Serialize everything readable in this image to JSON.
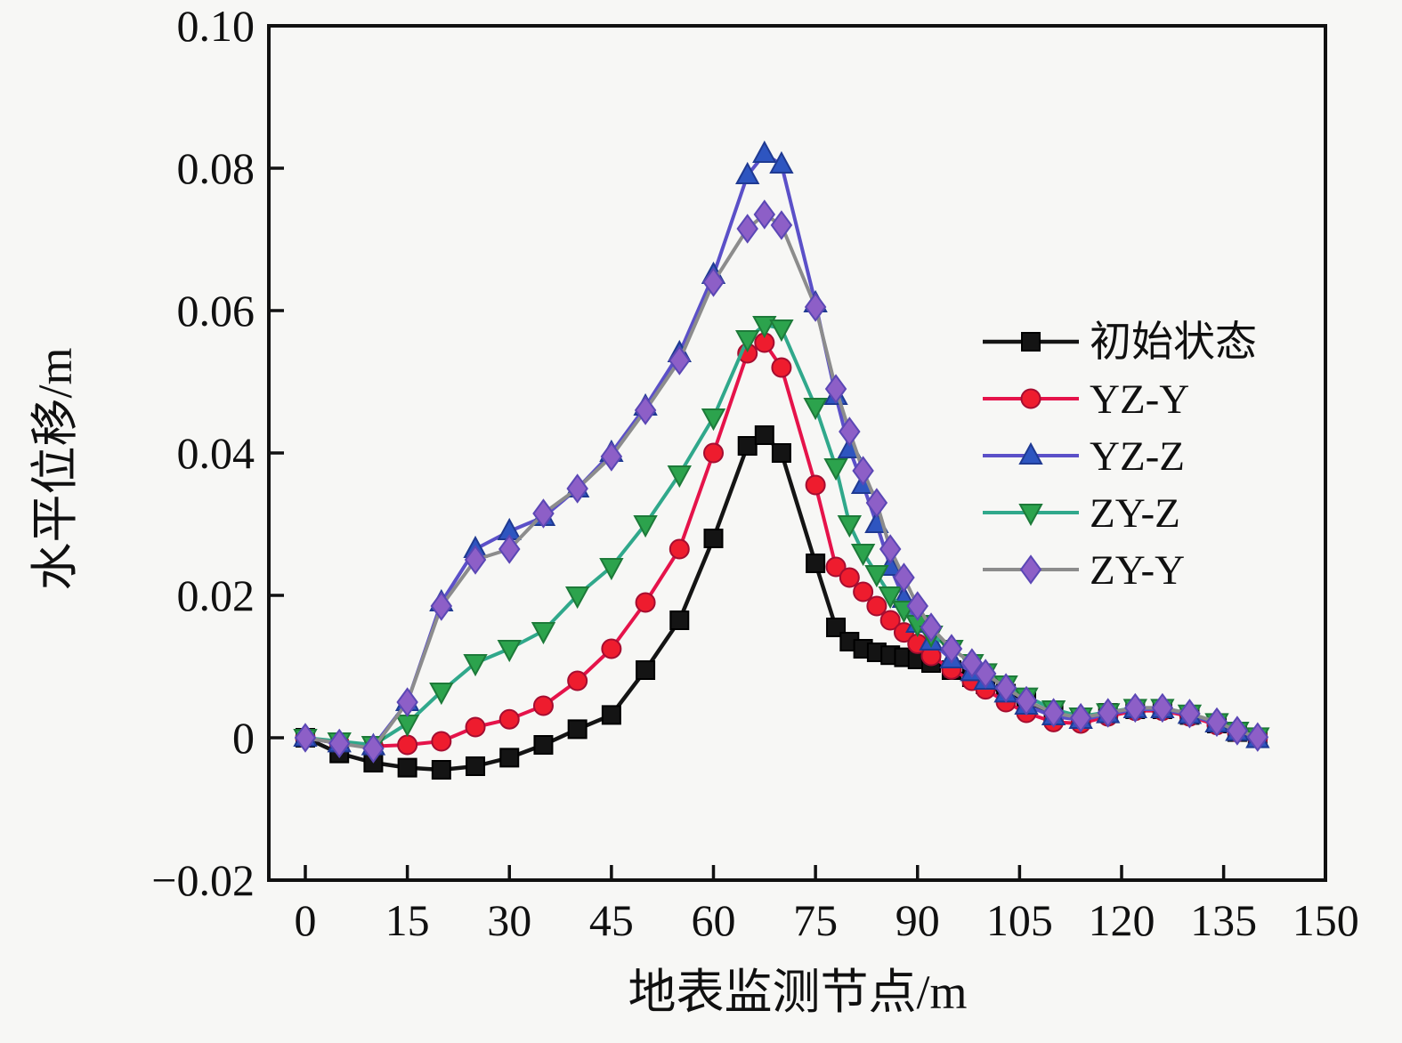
{
  "figure": {
    "background": "#f7f7f5",
    "frame_color": "#111111"
  },
  "x_axis": {
    "label": "地表监测节点/m",
    "ticks": [
      0,
      15,
      30,
      45,
      60,
      75,
      90,
      105,
      120,
      135,
      150
    ],
    "tick_labels": [
      "0",
      "15",
      "30",
      "45",
      "60",
      "75",
      "90",
      "105",
      "120",
      "135",
      "150"
    ],
    "min": 0,
    "max": 150
  },
  "y_axis": {
    "label": "水平位移/m",
    "ticks": [
      -0.02,
      0,
      0.02,
      0.04,
      0.06,
      0.08,
      0.1
    ],
    "tick_labels": [
      "−0.02",
      "0",
      "0.02",
      "0.04",
      "0.06",
      "0.08",
      "0.10"
    ],
    "min": -0.02,
    "max": 0.1
  },
  "legend": {
    "position": "inside-right",
    "items": [
      "初始状态",
      "YZ-Y",
      "YZ-Z",
      "ZY-Z",
      "ZY-Y"
    ]
  },
  "chart_data": {
    "type": "line",
    "title": "",
    "xlabel": "地表监测节点/m",
    "ylabel": "水平位移/m",
    "xlim": [
      0,
      150
    ],
    "ylim": [
      -0.02,
      0.1
    ],
    "grid": false,
    "legend_position": "inside-right",
    "x": [
      0,
      5,
      10,
      15,
      20,
      25,
      30,
      35,
      40,
      45,
      50,
      55,
      60,
      65,
      67.5,
      70,
      75,
      78,
      80,
      82,
      84,
      86,
      88,
      90,
      92,
      95,
      98,
      100,
      103,
      106,
      110,
      114,
      118,
      122,
      126,
      130,
      134,
      137,
      140
    ],
    "series": [
      {
        "id": "initial-state",
        "name": "初始状态",
        "line_color": "#141414",
        "line_width": 4.5,
        "marker": "square",
        "marker_fill": "#141414",
        "marker_edge": "#000000",
        "values": [
          0,
          -0.0022,
          -0.0035,
          -0.0042,
          -0.0045,
          -0.004,
          -0.0028,
          -0.001,
          0.0012,
          0.0032,
          0.0095,
          0.0165,
          0.028,
          0.041,
          0.0425,
          0.04,
          0.0245,
          0.0155,
          0.0135,
          0.0125,
          0.012,
          0.0116,
          0.0113,
          0.011,
          0.0105,
          0.0095,
          0.0085,
          0.0075,
          0.0062,
          0.005,
          0.0035,
          0.0028,
          0.0035,
          0.004,
          0.004,
          0.0032,
          0.002,
          0.0008,
          0
        ]
      },
      {
        "id": "yz-y",
        "name": "YZ-Y",
        "line_color": "#e5134a",
        "line_width": 4,
        "marker": "circle",
        "marker_fill": "#ee1c2e",
        "marker_edge": "#a50d30",
        "values": [
          0,
          -0.0008,
          -0.0012,
          -0.001,
          -0.0005,
          0.0015,
          0.0026,
          0.0045,
          0.008,
          0.0125,
          0.019,
          0.0265,
          0.04,
          0.054,
          0.0555,
          0.052,
          0.0355,
          0.024,
          0.0225,
          0.0205,
          0.0185,
          0.0165,
          0.0148,
          0.0132,
          0.0115,
          0.0096,
          0.008,
          0.0068,
          0.005,
          0.0035,
          0.0022,
          0.002,
          0.003,
          0.0038,
          0.0038,
          0.003,
          0.0018,
          0.0008,
          0
        ]
      },
      {
        "id": "yz-z",
        "name": "YZ-Z",
        "line_color": "#5b50c8",
        "line_width": 4,
        "marker": "triangle-up",
        "marker_fill": "#2e55c0",
        "marker_edge": "#1f3a92",
        "values": [
          0,
          -0.0008,
          -0.0012,
          0.005,
          0.019,
          0.0265,
          0.029,
          0.031,
          0.035,
          0.04,
          0.0465,
          0.054,
          0.065,
          0.079,
          0.082,
          0.0805,
          0.061,
          0.048,
          0.0405,
          0.0355,
          0.03,
          0.024,
          0.0195,
          0.016,
          0.0135,
          0.011,
          0.0092,
          0.008,
          0.0062,
          0.0045,
          0.003,
          0.0025,
          0.0033,
          0.004,
          0.004,
          0.0032,
          0.002,
          0.0008,
          -0.0002
        ]
      },
      {
        "id": "zy-z",
        "name": "ZY-Z",
        "line_color": "#30a88b",
        "line_width": 4,
        "marker": "triangle-down",
        "marker_fill": "#2ca34d",
        "marker_edge": "#1d7a39",
        "values": [
          0,
          -0.0005,
          -0.001,
          0.002,
          0.0065,
          0.0105,
          0.0125,
          0.015,
          0.02,
          0.024,
          0.03,
          0.037,
          0.045,
          0.056,
          0.058,
          0.0575,
          0.0465,
          0.038,
          0.03,
          0.026,
          0.023,
          0.02,
          0.018,
          0.016,
          0.0145,
          0.0125,
          0.0105,
          0.0092,
          0.0075,
          0.0058,
          0.004,
          0.003,
          0.0036,
          0.0042,
          0.0042,
          0.0034,
          0.0022,
          0.001,
          0.0002
        ]
      },
      {
        "id": "zy-y",
        "name": "ZY-Y",
        "line_color": "#8c8c8c",
        "line_width": 4,
        "marker": "diamond",
        "marker_fill": "#8d5fc7",
        "marker_edge": "#5b47b5",
        "values": [
          0,
          -0.0008,
          -0.0015,
          0.005,
          0.0185,
          0.025,
          0.0265,
          0.0315,
          0.035,
          0.0395,
          0.046,
          0.053,
          0.064,
          0.0715,
          0.0735,
          0.072,
          0.0605,
          0.049,
          0.043,
          0.0375,
          0.033,
          0.0265,
          0.0225,
          0.0185,
          0.0155,
          0.0125,
          0.0105,
          0.009,
          0.007,
          0.0052,
          0.0035,
          0.0028,
          0.0035,
          0.0042,
          0.0042,
          0.0034,
          0.0022,
          0.001,
          0.0001
        ]
      }
    ]
  }
}
